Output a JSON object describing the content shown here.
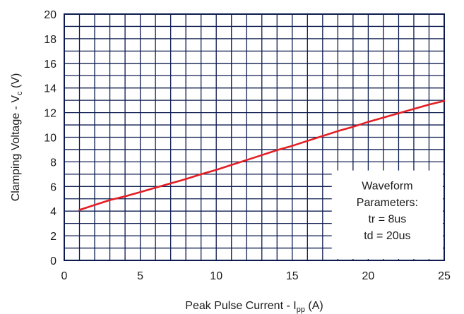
{
  "chart_data": {
    "type": "line",
    "xlabel": {
      "main": "Peak Pulse Current - I",
      "sub": "pp",
      "unit": " (A)"
    },
    "ylabel": {
      "main": "Clamping Voltage - V",
      "sub": "c",
      "unit": " (V)"
    },
    "xlim": [
      0,
      25
    ],
    "ylim": [
      0,
      20
    ],
    "x_ticks": [
      0,
      5,
      10,
      15,
      20,
      25
    ],
    "y_ticks": [
      0,
      2,
      4,
      6,
      8,
      10,
      12,
      14,
      16,
      18,
      20
    ],
    "grid": true,
    "series": [
      {
        "color": "#e31e24",
        "x": [
          1,
          2,
          3,
          4,
          5,
          6,
          7,
          8,
          9,
          10,
          11,
          12,
          13,
          14,
          15,
          16,
          17,
          18,
          19,
          20,
          21,
          22,
          23,
          24,
          25
        ],
        "y": [
          4.1,
          4.5,
          4.9,
          5.2,
          5.55,
          5.9,
          6.25,
          6.6,
          7.0,
          7.35,
          7.75,
          8.15,
          8.55,
          8.95,
          9.3,
          9.7,
          10.1,
          10.5,
          10.85,
          11.25,
          11.6,
          11.95,
          12.3,
          12.65,
          12.95
        ]
      }
    ],
    "annotation": {
      "lines": [
        "Waveform",
        "Parameters:",
        "tr = 8us",
        "td = 20us"
      ]
    }
  }
}
